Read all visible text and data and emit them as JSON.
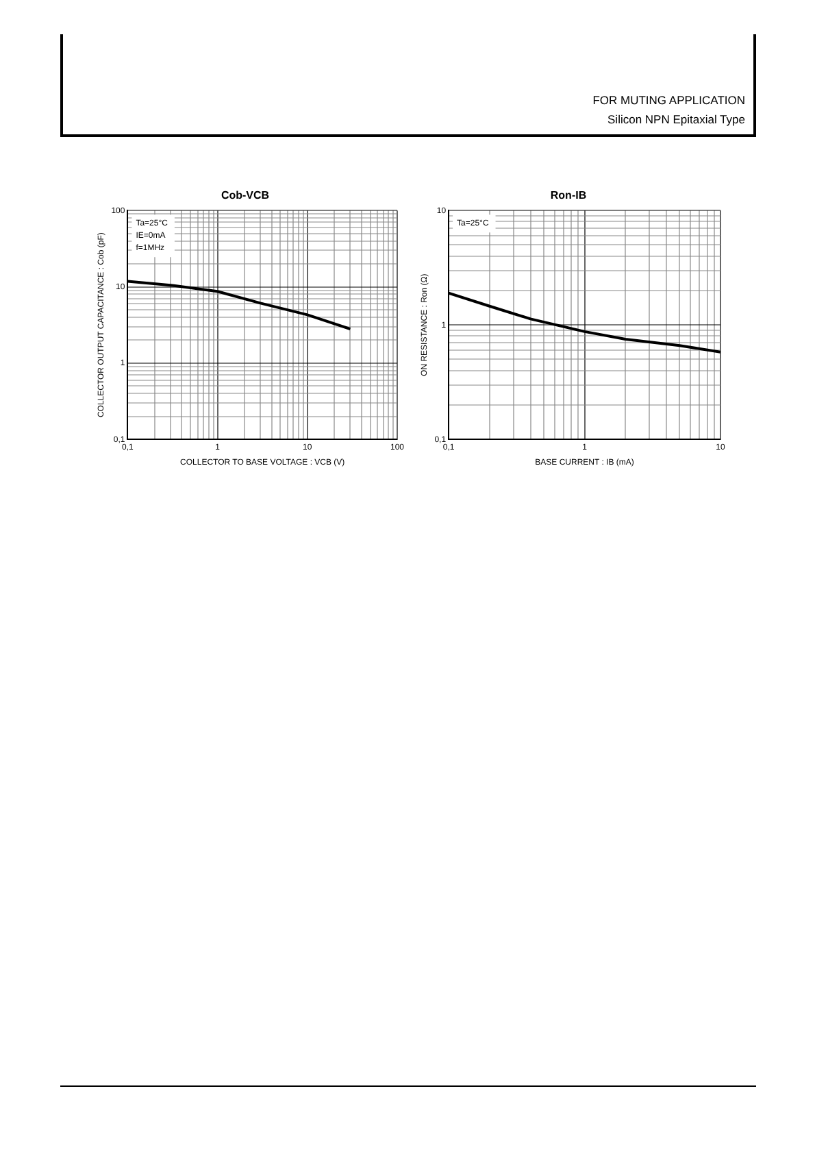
{
  "chart_data": [
    {
      "type": "line",
      "title": "Cob-VCB",
      "xlabel": "COLLECTOR TO BASE VOLTAGE : VCB (V)",
      "ylabel": "COLLECTOR OUTPUT CAPACITANCE : Cob (pF)",
      "annotations": [
        "Ta=25°C",
        "IE=0mA",
        "f=1MHz"
      ],
      "log": "xy",
      "grid": true,
      "line_style": "solid",
      "xlim": [
        0.1,
        100
      ],
      "ylim": [
        0.1,
        100
      ],
      "xticks": [
        {
          "value": 0.1,
          "label": "0,1"
        },
        {
          "value": 0.2,
          "label": null
        },
        {
          "value": 0.3,
          "label": null
        },
        {
          "value": 0.4,
          "label": null
        },
        {
          "value": 0.5,
          "label": null
        },
        {
          "value": 0.6,
          "label": null
        },
        {
          "value": 0.7,
          "label": null
        },
        {
          "value": 0.8,
          "label": null
        },
        {
          "value": 0.9,
          "label": null
        },
        1,
        {
          "value": 2,
          "label": null
        },
        {
          "value": 3,
          "label": null
        },
        {
          "value": 4,
          "label": null
        },
        {
          "value": 5,
          "label": null
        },
        {
          "value": 6,
          "label": null
        },
        {
          "value": 7,
          "label": null
        },
        {
          "value": 8,
          "label": null
        },
        {
          "value": 9,
          "label": null
        },
        10,
        {
          "value": 20,
          "label": null
        },
        {
          "value": 30,
          "label": null
        },
        {
          "value": 40,
          "label": null
        },
        {
          "value": 50,
          "label": null
        },
        {
          "value": 60,
          "label": null
        },
        {
          "value": 70,
          "label": null
        },
        {
          "value": 80,
          "label": null
        },
        {
          "value": 90,
          "label": null
        },
        100
      ],
      "yticks": [
        {
          "value": 0.1,
          "label": "0,1"
        },
        {
          "value": 0.2,
          "label": null
        },
        {
          "value": 0.3,
          "label": null
        },
        {
          "value": 0.4,
          "label": null
        },
        {
          "value": 0.5,
          "label": null
        },
        {
          "value": 0.6,
          "label": null
        },
        {
          "value": 0.7,
          "label": null
        },
        {
          "value": 0.8,
          "label": null
        },
        {
          "value": 0.9,
          "label": null
        },
        1,
        {
          "value": 2,
          "label": null
        },
        {
          "value": 3,
          "label": null
        },
        {
          "value": 4,
          "label": null
        },
        {
          "value": 5,
          "label": null
        },
        {
          "value": 6,
          "label": null
        },
        {
          "value": 7,
          "label": null
        },
        {
          "value": 8,
          "label": null
        },
        {
          "value": 9,
          "label": null
        },
        10,
        {
          "value": 20,
          "label": null
        },
        {
          "value": 30,
          "label": null
        },
        {
          "value": 40,
          "label": null
        },
        {
          "value": 50,
          "label": null
        },
        {
          "value": 60,
          "label": null
        },
        {
          "value": 70,
          "label": null
        },
        {
          "value": 80,
          "label": null
        },
        {
          "value": 90,
          "label": null
        },
        100
      ],
      "x": [
        0.1,
        0.3,
        1,
        3,
        10,
        30
      ],
      "series": [
        {
          "color": "#000000",
          "values": [
            11.8,
            10.5,
            8.7,
            6.1,
            4.3,
            2.8
          ]
        }
      ]
    },
    {
      "type": "line",
      "title": "Ron-IB",
      "subtitle": "FOR MUTING APPLICATION\nSilicon NPN Epitaxial Type",
      "xlabel": "BASE CURRENT : IB (mA)",
      "ylabel": "ON RESISTANCE : Ron (Ω)",
      "annotations": [
        "Ta=25°C"
      ],
      "log": "xy",
      "grid": true,
      "line_style": "solid",
      "xlim": [
        0.1,
        10
      ],
      "ylim": [
        0.1,
        10
      ],
      "xticks": [
        {
          "value": 0.1,
          "label": "0,1"
        },
        {
          "value": 0.2,
          "label": null
        },
        {
          "value": 0.3,
          "label": null
        },
        {
          "value": 0.4,
          "label": null
        },
        {
          "value": 0.5,
          "label": null
        },
        {
          "value": 0.6,
          "label": null
        },
        {
          "value": 0.7,
          "label": null
        },
        {
          "value": 0.8,
          "label": null
        },
        {
          "value": 0.9,
          "label": null
        },
        1,
        {
          "value": 2,
          "label": null
        },
        {
          "value": 3,
          "label": null
        },
        {
          "value": 4,
          "label": null
        },
        {
          "value": 5,
          "label": null
        },
        {
          "value": 6,
          "label": null
        },
        {
          "value": 7,
          "label": null
        },
        {
          "value": 8,
          "label": null
        },
        {
          "value": 9,
          "label": null
        },
        10
      ],
      "yticks": [
        {
          "value": 0.1,
          "label": "0,1"
        },
        {
          "value": 0.2,
          "label": null
        },
        {
          "value": 0.3,
          "label": null
        },
        {
          "value": 0.4,
          "label": null
        },
        {
          "value": 0.5,
          "label": null
        },
        {
          "value": 0.6,
          "label": null
        },
        {
          "value": 0.7,
          "label": null
        },
        {
          "value": 0.8,
          "label": null
        },
        {
          "value": 0.9,
          "label": null
        },
        1,
        {
          "value": 2,
          "label": null
        },
        {
          "value": 3,
          "label": null
        },
        {
          "value": 4,
          "label": null
        },
        {
          "value": 5,
          "label": null
        },
        {
          "value": 6,
          "label": null
        },
        {
          "value": 7,
          "label": null
        },
        {
          "value": 8,
          "label": null
        },
        {
          "value": 9,
          "label": null
        },
        10
      ],
      "x": [
        0.1,
        0.2,
        0.4,
        1,
        2,
        5,
        10
      ],
      "series": [
        {
          "color": "#000000",
          "values": [
            1.9,
            1.46,
            1.13,
            0.875,
            0.75,
            0.66,
            0.58
          ]
        }
      ]
    }
  ]
}
